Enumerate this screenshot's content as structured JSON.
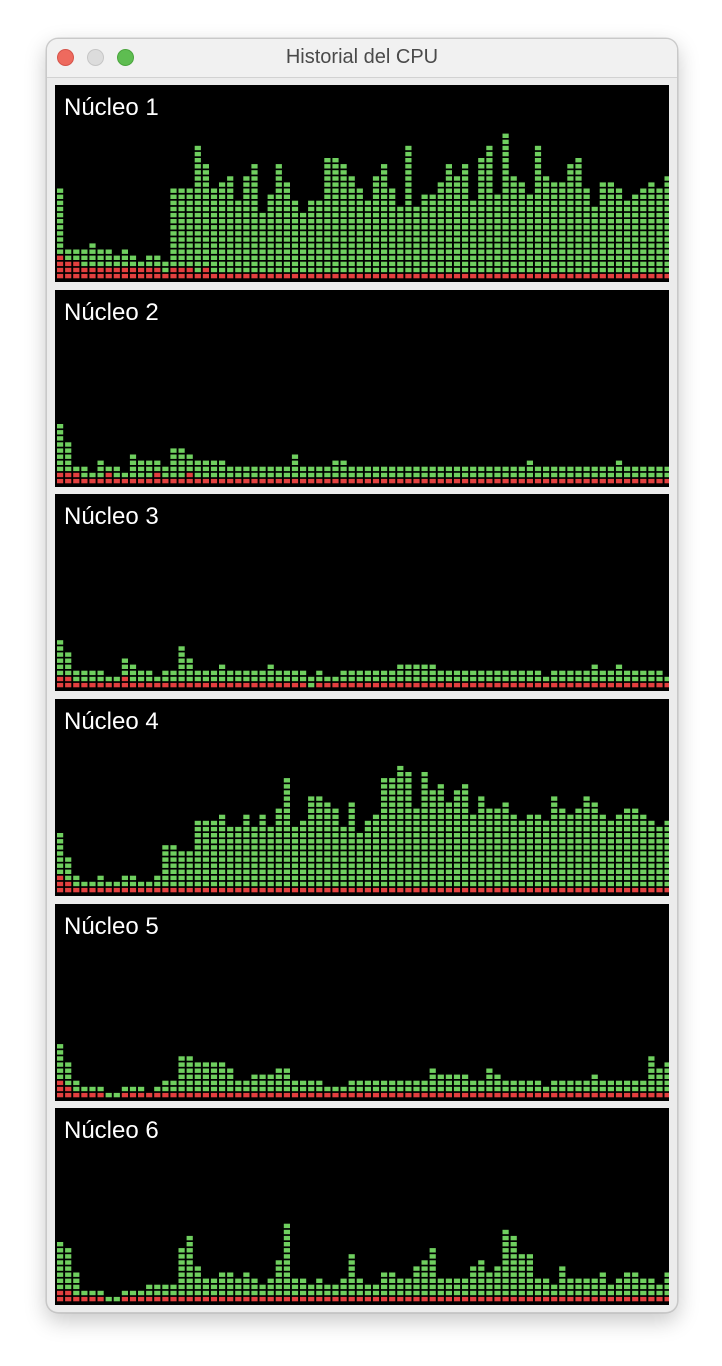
{
  "window": {
    "title": "Historial del CPU"
  },
  "colors": {
    "green": "#6fcf5f",
    "red": "#e3403f",
    "background": "#000000"
  },
  "cores": [
    {
      "label": "Núcleo 1",
      "total_segments": [
        15,
        5,
        5,
        5,
        6,
        5,
        5,
        4,
        5,
        4,
        3,
        4,
        4,
        3,
        15,
        15,
        15,
        22,
        19,
        15,
        16,
        17,
        13,
        17,
        19,
        11,
        14,
        19,
        16,
        13,
        11,
        13,
        13,
        20,
        20,
        19,
        17,
        15,
        13,
        17,
        19,
        15,
        12,
        22,
        12,
        14,
        14,
        16,
        19,
        17,
        19,
        13,
        20,
        22,
        14,
        24,
        17,
        16,
        14,
        22,
        17,
        16,
        16,
        19,
        20,
        15,
        12,
        16,
        16,
        15,
        13,
        14,
        15,
        16,
        15,
        17,
        20,
        17,
        18,
        22,
        28,
        21,
        20,
        16,
        16,
        19,
        13,
        13,
        17,
        15,
        11,
        11
      ],
      "red_segments": [
        4,
        3,
        3,
        2,
        2,
        2,
        2,
        2,
        2,
        2,
        2,
        2,
        2,
        1,
        2,
        2,
        2,
        1,
        2,
        1,
        1,
        1,
        1,
        1,
        1,
        1,
        1,
        1,
        1,
        1,
        1,
        1,
        1,
        1,
        1,
        1,
        1,
        1,
        1,
        1,
        1,
        1,
        1,
        1,
        1,
        1,
        1,
        1,
        1,
        1,
        1,
        1,
        1,
        1,
        1,
        1,
        1,
        1,
        1,
        1,
        1,
        1,
        1,
        1,
        1,
        1,
        1,
        1,
        1,
        1,
        1,
        1,
        1,
        1,
        1,
        1,
        1,
        1,
        1,
        1,
        1,
        1,
        1,
        1,
        1,
        1,
        1,
        1,
        1,
        1,
        1,
        1
      ]
    },
    {
      "label": "Núcleo 2",
      "total_segments": [
        10,
        7,
        3,
        3,
        2,
        4,
        3,
        3,
        2,
        5,
        4,
        4,
        4,
        3,
        6,
        6,
        5,
        4,
        4,
        4,
        4,
        3,
        3,
        3,
        3,
        3,
        3,
        3,
        3,
        5,
        3,
        3,
        3,
        3,
        4,
        4,
        3,
        3,
        3,
        3,
        3,
        3,
        3,
        3,
        3,
        3,
        3,
        3,
        3,
        3,
        3,
        3,
        3,
        3,
        3,
        3,
        3,
        3,
        4,
        3,
        3,
        3,
        3,
        3,
        3,
        3,
        3,
        3,
        3,
        4,
        3,
        3,
        3,
        3,
        3,
        3,
        3,
        3,
        4,
        3,
        3,
        3,
        3,
        3,
        3,
        4,
        6,
        7,
        4,
        3,
        3,
        3,
        3,
        3,
        4,
        4
      ],
      "red_segments": [
        2,
        2,
        2,
        1,
        1,
        1,
        2,
        1,
        1,
        1,
        1,
        1,
        2,
        1,
        1,
        1,
        2,
        1,
        1,
        1,
        1,
        1,
        1,
        1,
        1,
        1,
        1,
        1,
        1,
        1,
        1,
        1,
        1,
        1,
        1,
        1,
        1,
        1,
        1,
        1,
        1,
        1,
        1,
        1,
        1,
        1,
        1,
        1,
        1,
        1,
        1,
        1,
        1,
        1,
        1,
        1,
        1,
        1,
        1,
        1,
        1,
        1,
        1,
        1,
        1,
        1,
        1,
        1,
        1,
        1,
        1,
        1,
        1,
        1,
        1,
        1,
        1,
        1,
        1,
        1,
        1,
        1,
        1,
        1,
        1,
        1,
        1,
        1,
        1,
        1,
        1,
        1,
        1,
        1,
        1,
        1
      ]
    },
    {
      "label": "Núcleo 3",
      "total_segments": [
        8,
        6,
        3,
        3,
        3,
        3,
        2,
        2,
        5,
        4,
        3,
        3,
        2,
        3,
        3,
        7,
        5,
        3,
        3,
        3,
        4,
        3,
        3,
        3,
        3,
        3,
        4,
        3,
        3,
        3,
        3,
        2,
        3,
        2,
        2,
        3,
        3,
        3,
        3,
        3,
        3,
        3,
        4,
        4,
        4,
        4,
        4,
        3,
        3,
        3,
        3,
        3,
        3,
        3,
        3,
        3,
        3,
        3,
        3,
        3,
        2,
        3,
        3,
        3,
        3,
        3,
        4,
        3,
        3,
        4,
        3,
        3,
        3,
        3,
        3,
        2,
        3,
        3,
        4,
        4,
        4,
        4,
        4,
        3,
        3,
        3,
        2,
        3,
        3,
        3,
        3,
        3,
        3,
        3,
        3,
        3
      ],
      "red_segments": [
        2,
        2,
        1,
        1,
        1,
        1,
        1,
        1,
        2,
        1,
        1,
        1,
        1,
        1,
        1,
        1,
        1,
        1,
        1,
        1,
        1,
        1,
        1,
        1,
        1,
        1,
        1,
        1,
        1,
        1,
        1,
        0,
        1,
        1,
        1,
        1,
        1,
        1,
        1,
        1,
        1,
        1,
        1,
        1,
        1,
        1,
        1,
        1,
        1,
        1,
        1,
        1,
        1,
        1,
        1,
        1,
        1,
        1,
        1,
        1,
        1,
        1,
        1,
        1,
        1,
        1,
        1,
        1,
        1,
        1,
        1,
        1,
        1,
        1,
        1,
        1,
        1,
        1,
        1,
        1,
        1,
        1,
        1,
        1,
        1,
        1,
        1,
        1,
        1,
        1,
        1,
        1,
        1,
        1,
        1,
        1
      ]
    },
    {
      "label": "Núcleo 4",
      "total_segments": [
        10,
        6,
        3,
        2,
        2,
        3,
        2,
        2,
        3,
        3,
        2,
        2,
        3,
        8,
        8,
        7,
        7,
        12,
        12,
        12,
        13,
        11,
        11,
        13,
        11,
        13,
        11,
        14,
        19,
        11,
        12,
        16,
        16,
        15,
        14,
        11,
        15,
        10,
        12,
        13,
        19,
        19,
        21,
        20,
        14,
        20,
        17,
        18,
        15,
        17,
        18,
        13,
        16,
        14,
        14,
        15,
        13,
        12,
        13,
        13,
        12,
        16,
        14,
        13,
        14,
        16,
        15,
        13,
        12,
        13,
        14,
        14,
        13,
        12,
        11,
        12,
        12,
        12,
        13,
        10,
        13,
        14,
        11,
        15,
        13,
        14,
        15,
        12,
        10,
        10,
        13,
        13,
        13,
        13,
        12,
        13
      ],
      "red_segments": [
        3,
        2,
        1,
        1,
        1,
        1,
        1,
        1,
        1,
        1,
        1,
        1,
        1,
        1,
        1,
        1,
        1,
        1,
        1,
        1,
        1,
        1,
        1,
        1,
        1,
        1,
        1,
        1,
        1,
        1,
        1,
        1,
        1,
        1,
        1,
        1,
        1,
        1,
        1,
        1,
        1,
        1,
        1,
        1,
        1,
        1,
        1,
        1,
        1,
        1,
        1,
        1,
        1,
        1,
        1,
        1,
        1,
        1,
        1,
        1,
        1,
        1,
        1,
        1,
        1,
        1,
        1,
        1,
        1,
        1,
        1,
        1,
        1,
        1,
        1,
        1,
        1,
        1,
        1,
        1,
        1,
        1,
        1,
        1,
        1,
        1,
        1,
        1,
        1,
        1,
        1,
        1,
        1,
        1,
        1,
        1
      ]
    },
    {
      "label": "Núcleo 5",
      "total_segments": [
        9,
        6,
        3,
        2,
        2,
        2,
        1,
        1,
        2,
        2,
        2,
        1,
        2,
        3,
        3,
        7,
        7,
        6,
        6,
        6,
        6,
        5,
        3,
        3,
        4,
        4,
        4,
        5,
        5,
        3,
        3,
        3,
        3,
        2,
        2,
        2,
        3,
        3,
        3,
        3,
        3,
        3,
        3,
        3,
        3,
        3,
        5,
        4,
        4,
        4,
        4,
        3,
        3,
        5,
        4,
        3,
        3,
        3,
        3,
        3,
        2,
        3,
        3,
        3,
        3,
        3,
        4,
        3,
        3,
        3,
        3,
        3,
        3,
        7,
        5,
        6,
        7,
        3,
        3,
        3,
        3,
        3,
        3,
        3,
        3,
        4,
        4,
        4,
        8,
        9,
        9,
        9,
        6,
        4,
        4,
        3
      ],
      "red_segments": [
        3,
        2,
        1,
        1,
        1,
        1,
        0,
        0,
        1,
        1,
        1,
        1,
        1,
        1,
        1,
        1,
        1,
        1,
        1,
        1,
        1,
        1,
        1,
        1,
        1,
        1,
        1,
        1,
        1,
        1,
        1,
        1,
        1,
        1,
        1,
        1,
        1,
        1,
        1,
        1,
        1,
        1,
        1,
        1,
        1,
        1,
        1,
        1,
        1,
        1,
        1,
        1,
        1,
        1,
        1,
        1,
        1,
        1,
        1,
        1,
        1,
        1,
        1,
        1,
        1,
        1,
        1,
        1,
        1,
        1,
        1,
        1,
        1,
        1,
        1,
        1,
        1,
        1,
        1,
        1,
        1,
        1,
        1,
        1,
        1,
        1,
        1,
        1,
        1,
        1,
        1,
        1,
        1,
        1,
        1,
        1
      ]
    },
    {
      "label": "Núcleo 6",
      "total_segments": [
        10,
        9,
        5,
        2,
        2,
        2,
        1,
        1,
        2,
        2,
        2,
        3,
        3,
        3,
        3,
        9,
        11,
        6,
        4,
        4,
        5,
        5,
        4,
        5,
        4,
        3,
        4,
        7,
        13,
        4,
        4,
        3,
        4,
        3,
        3,
        4,
        8,
        4,
        3,
        3,
        5,
        5,
        4,
        4,
        6,
        7,
        9,
        4,
        4,
        4,
        4,
        6,
        7,
        5,
        6,
        12,
        11,
        8,
        8,
        4,
        4,
        3,
        6,
        4,
        4,
        4,
        4,
        5,
        3,
        4,
        5,
        5,
        4,
        4,
        3,
        5,
        13,
        11,
        12,
        15,
        9,
        9,
        10,
        4,
        4,
        5,
        4,
        10,
        11,
        5,
        5,
        5,
        4,
        4,
        4,
        4
      ],
      "red_segments": [
        2,
        2,
        1,
        1,
        1,
        1,
        0,
        0,
        1,
        1,
        1,
        1,
        1,
        1,
        1,
        1,
        1,
        1,
        1,
        1,
        1,
        1,
        1,
        1,
        1,
        1,
        1,
        1,
        1,
        1,
        1,
        1,
        1,
        1,
        1,
        1,
        1,
        1,
        1,
        1,
        1,
        1,
        1,
        1,
        1,
        1,
        1,
        1,
        1,
        1,
        1,
        1,
        1,
        1,
        1,
        1,
        1,
        1,
        1,
        1,
        1,
        1,
        1,
        1,
        1,
        1,
        1,
        1,
        1,
        1,
        1,
        1,
        1,
        1,
        1,
        1,
        1,
        1,
        1,
        1,
        1,
        1,
        1,
        1,
        1,
        1,
        1,
        1,
        1,
        1,
        1,
        1,
        1,
        1,
        1,
        1
      ]
    }
  ]
}
